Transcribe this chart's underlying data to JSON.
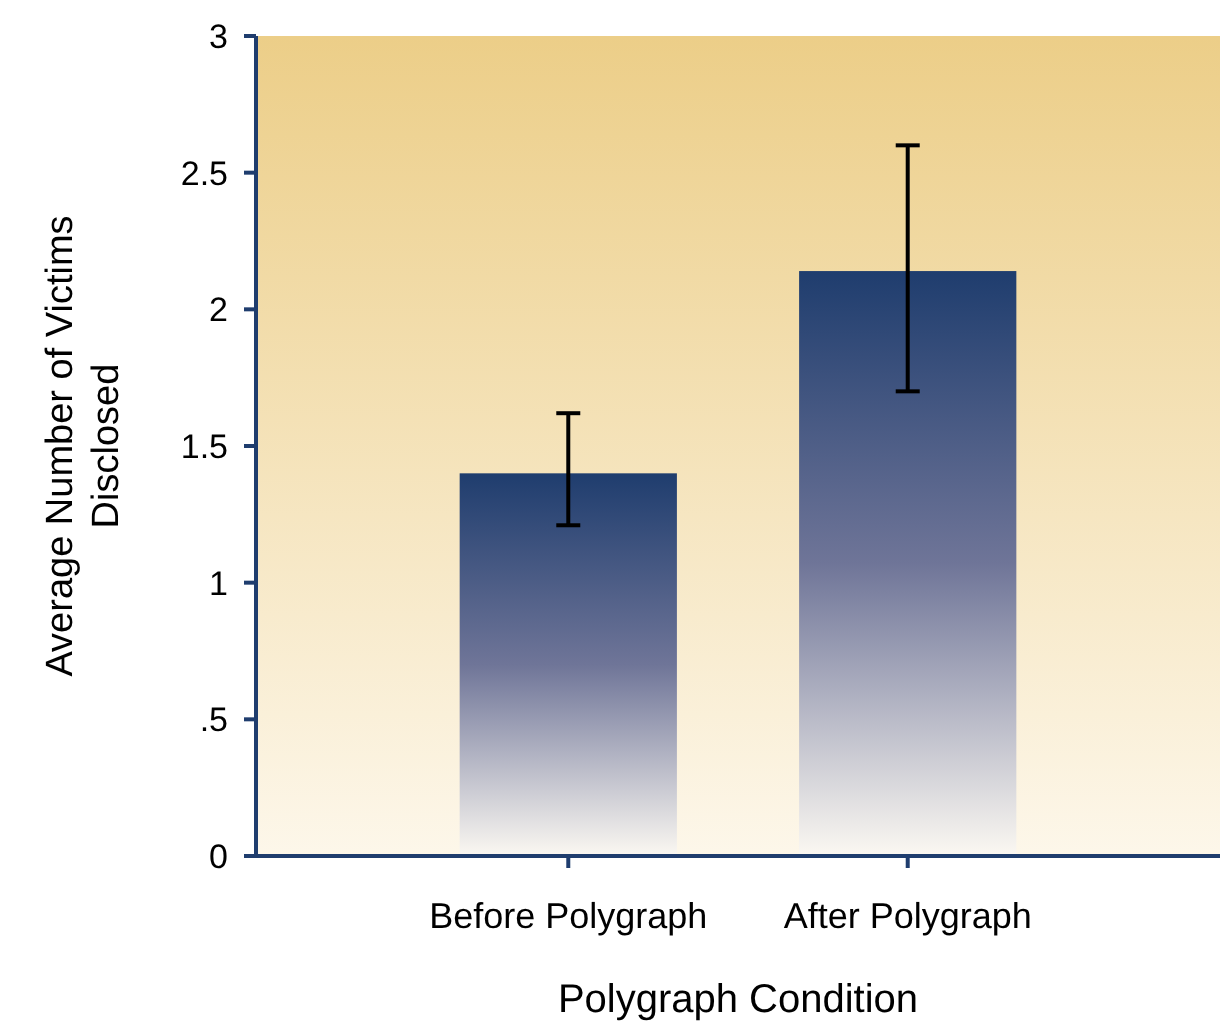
{
  "chart_data": {
    "type": "bar",
    "xlabel": "Polygraph Condition",
    "ylabel": "Average Number of Victims Disclosed",
    "categories": [
      "Before Polygraph",
      "After Polygraph"
    ],
    "values": [
      1.4,
      2.14
    ],
    "errors": [
      [
        1.21,
        1.62
      ],
      [
        1.7,
        2.6
      ]
    ],
    "color": "#1f3d6e",
    "ylim": [
      0,
      3
    ],
    "yticks": [
      0,
      {
        "value": 0.5,
        "label": ".5"
      },
      1,
      1.5,
      2,
      2.5,
      3
    ],
    "grid": false
  }
}
